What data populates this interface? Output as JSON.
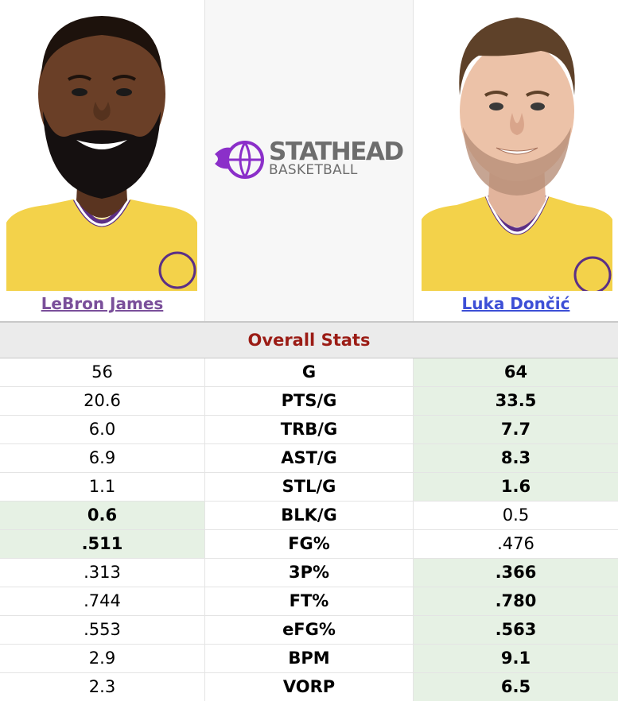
{
  "players": {
    "left": {
      "name": "LeBron James",
      "link_color": "#7a4f9a"
    },
    "right": {
      "name": "Luka Dončić",
      "link_color": "#3d4fd6"
    }
  },
  "logo": {
    "line1": "STATHEAD",
    "line2": "BASKETBALL",
    "accent": "#8b2fc9"
  },
  "section": {
    "title": "Overall Stats"
  },
  "highlight_color": "#e6f1e4",
  "rows": [
    {
      "stat": "G",
      "left": "56",
      "right": "64",
      "winner": "right"
    },
    {
      "stat": "PTS/G",
      "left": "20.6",
      "right": "33.5",
      "winner": "right"
    },
    {
      "stat": "TRB/G",
      "left": "6.0",
      "right": "7.7",
      "winner": "right"
    },
    {
      "stat": "AST/G",
      "left": "6.9",
      "right": "8.3",
      "winner": "right"
    },
    {
      "stat": "STL/G",
      "left": "1.1",
      "right": "1.6",
      "winner": "right"
    },
    {
      "stat": "BLK/G",
      "left": "0.6",
      "right": "0.5",
      "winner": "left"
    },
    {
      "stat": "FG%",
      "left": ".511",
      "right": ".476",
      "winner": "left"
    },
    {
      "stat": "3P%",
      "left": ".313",
      "right": ".366",
      "winner": "right"
    },
    {
      "stat": "FT%",
      "left": ".744",
      "right": ".780",
      "winner": "right"
    },
    {
      "stat": "eFG%",
      "left": ".553",
      "right": ".563",
      "winner": "right"
    },
    {
      "stat": "BPM",
      "left": "2.9",
      "right": "9.1",
      "winner": "right"
    },
    {
      "stat": "VORP",
      "left": "2.3",
      "right": "6.5",
      "winner": "right"
    }
  ]
}
